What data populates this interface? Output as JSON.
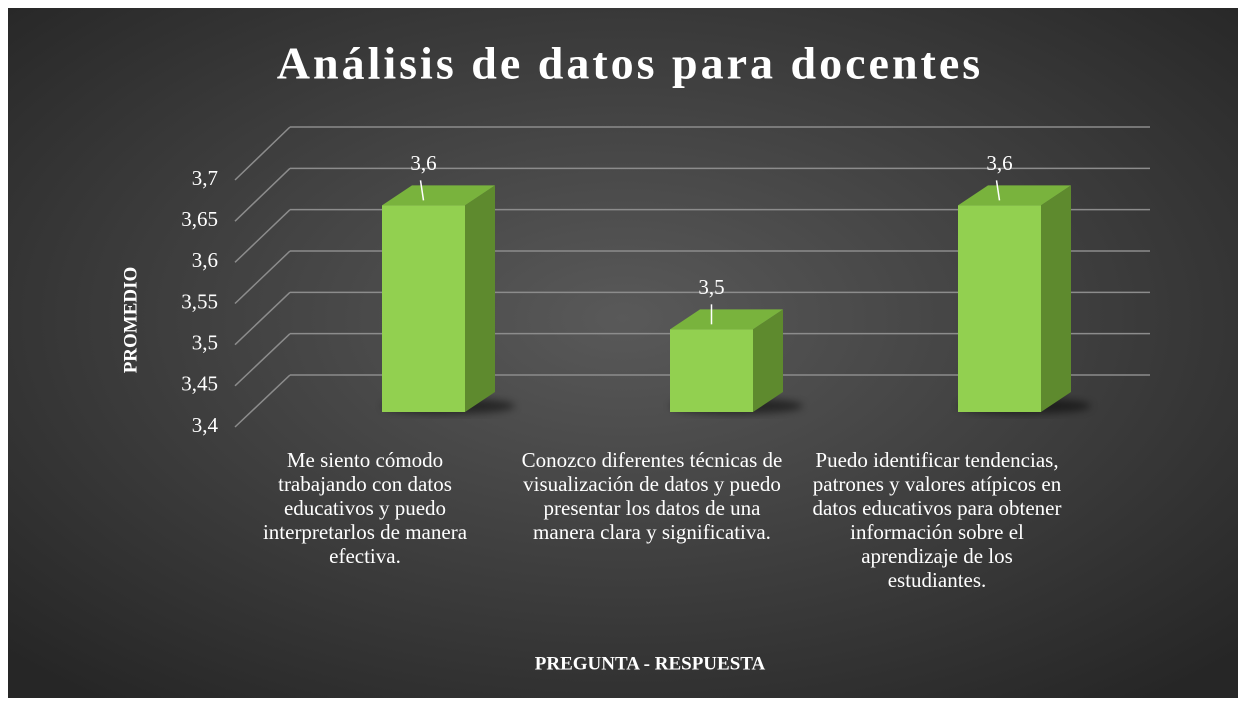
{
  "chart_data": {
    "type": "bar3d",
    "title": "Análisis de datos para docentes",
    "x_label": "PREGUNTA - RESPUESTA",
    "y_label": "PROMEDIO",
    "categories": [
      "Me siento cómodo trabajando con datos educativos y puedo interpretarlos de manera efectiva.",
      "Conozco diferentes técnicas de visualización de datos y puedo presentar los datos de una manera clara y significativa.",
      "Puedo identificar tendencias, patrones y valores atípicos en datos educativos para obtener información sobre el aprendizaje de los estudiantes."
    ],
    "values": [
      3.65,
      3.5,
      3.65
    ],
    "value_labels": [
      "3,6",
      "3,5",
      "3,6"
    ],
    "color": "#92d050",
    "ylim": [
      3.4,
      3.7
    ],
    "yticks": [
      {
        "value": 3.4,
        "label": "3,4"
      },
      {
        "value": 3.45,
        "label": "3,45"
      },
      {
        "value": 3.5,
        "label": "3,5"
      },
      {
        "value": 3.55,
        "label": "3,55"
      },
      {
        "value": 3.6,
        "label": "3,6"
      },
      {
        "value": 3.65,
        "label": "3,65"
      },
      {
        "value": 3.7,
        "label": "3,7"
      }
    ],
    "grid": true
  }
}
